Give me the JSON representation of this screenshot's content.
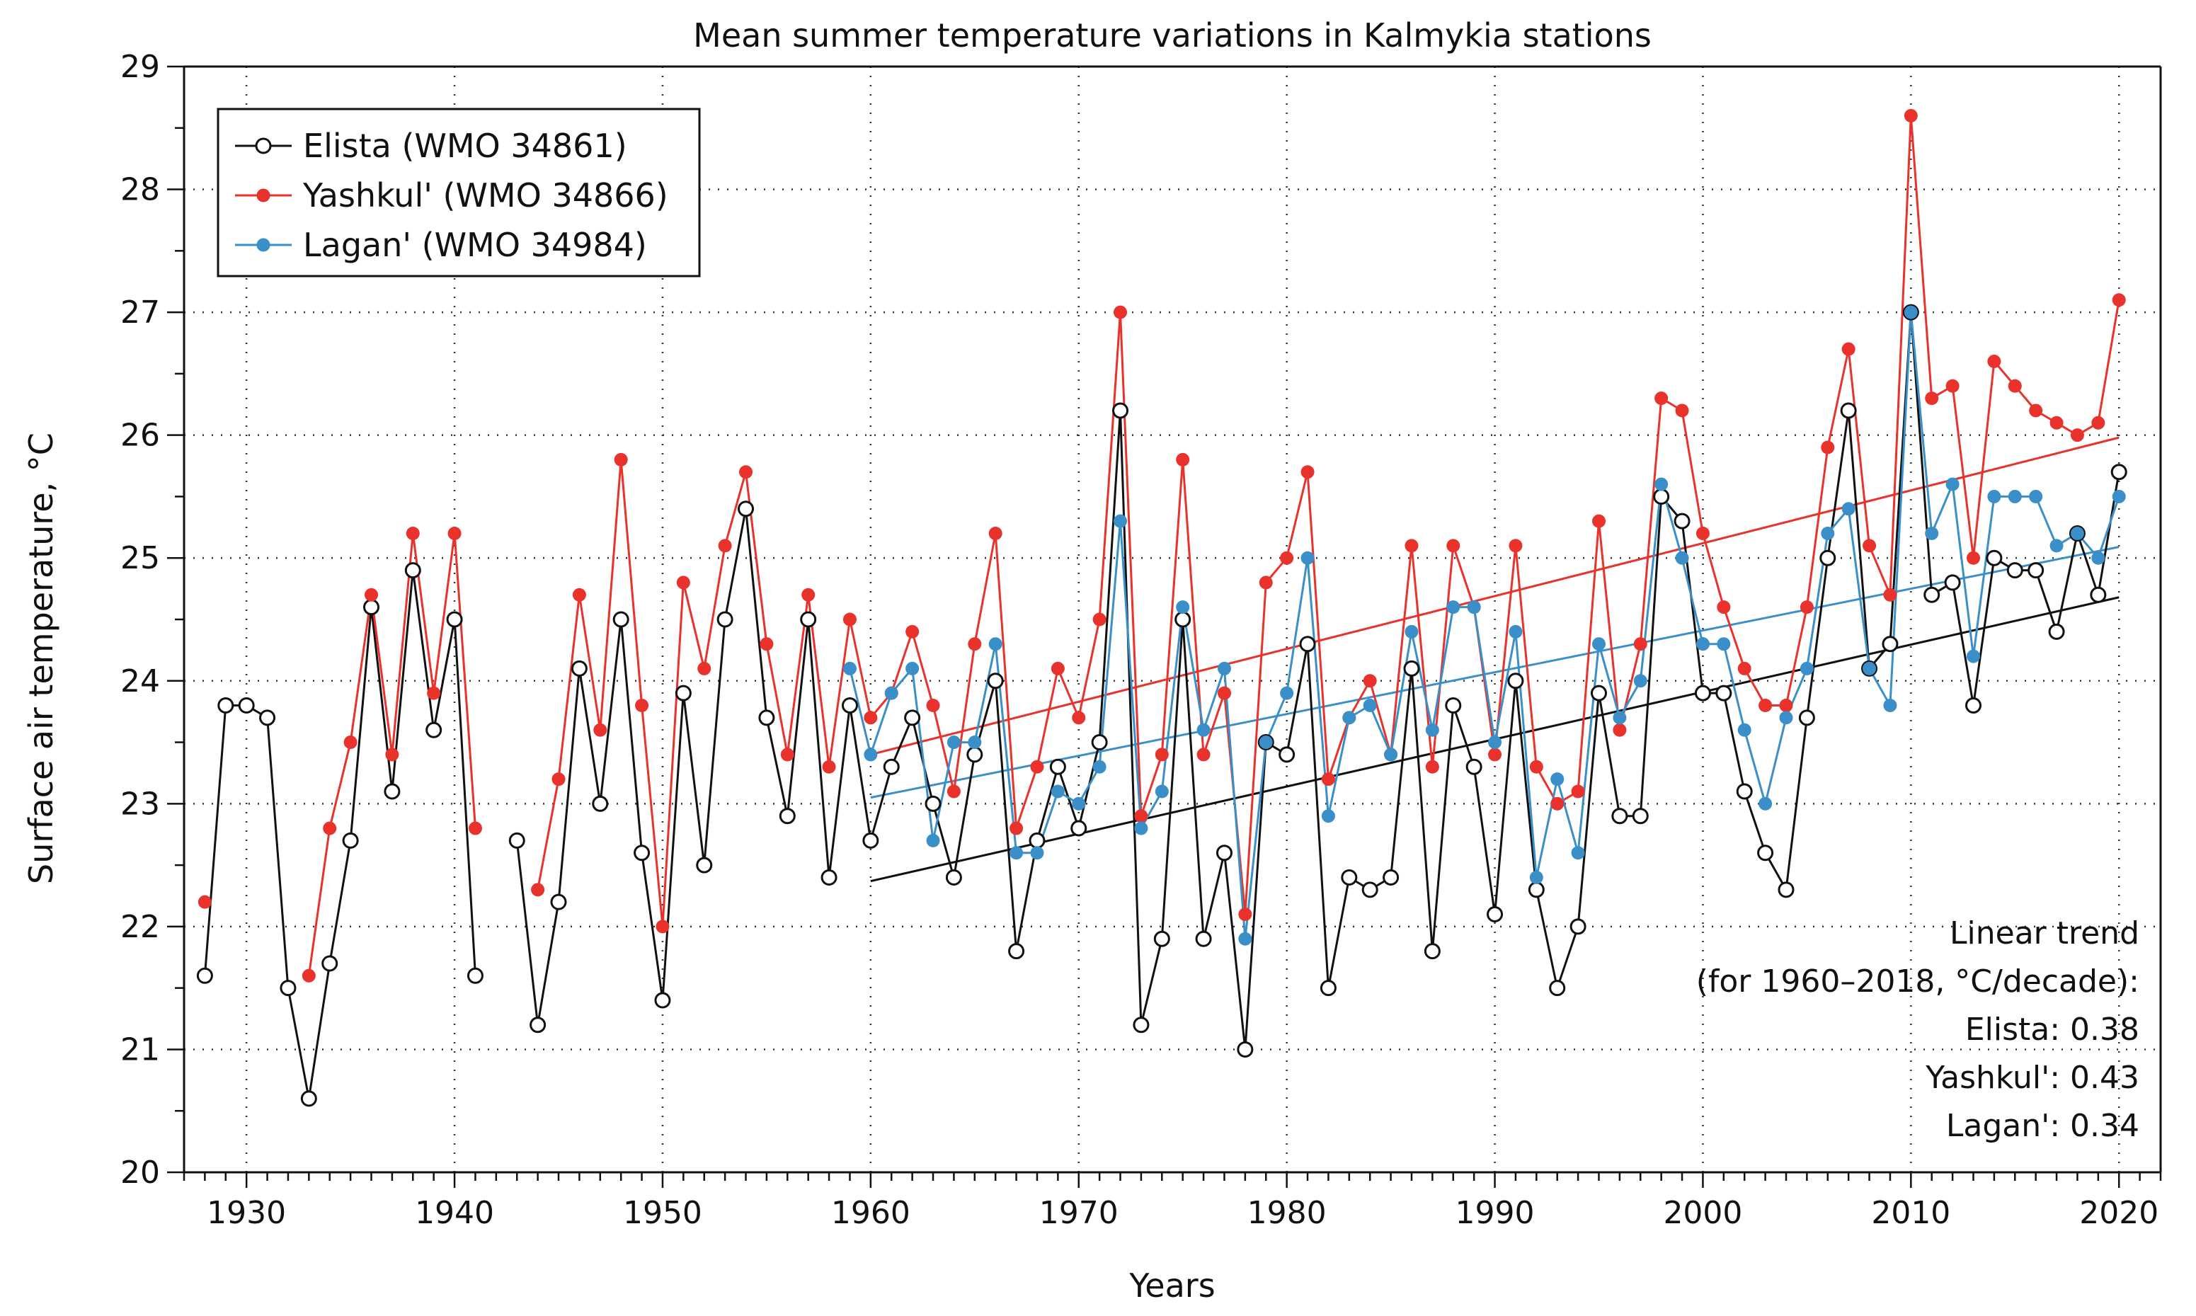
{
  "chart_data": {
    "type": "line",
    "title": "Mean summer temperature variations in Kalmykia stations",
    "xlabel": "Years",
    "ylabel": "Surface air temperature, °C",
    "xlim": [
      1927,
      2022
    ],
    "ylim": [
      20,
      29
    ],
    "xticks": [
      1930,
      1940,
      1950,
      1960,
      1970,
      1980,
      1990,
      2000,
      2010,
      2020
    ],
    "yticks": [
      20,
      21,
      22,
      23,
      24,
      25,
      26,
      27,
      28,
      29
    ],
    "grid": true,
    "legend_position": "top-left",
    "series": [
      {
        "name": "Elista (WMO 34861)",
        "color": "#111111",
        "marker": "open-circle",
        "points": [
          [
            1928,
            21.6
          ],
          [
            1929,
            23.8
          ],
          [
            1930,
            23.8
          ],
          [
            1931,
            23.7
          ],
          [
            1932,
            21.5
          ],
          [
            1933,
            20.6
          ],
          [
            1934,
            21.7
          ],
          [
            1935,
            22.7
          ],
          [
            1936,
            24.6
          ],
          [
            1937,
            23.1
          ],
          [
            1938,
            24.9
          ],
          [
            1939,
            23.6
          ],
          [
            1940,
            24.5
          ],
          [
            1941,
            21.6
          ],
          null,
          [
            1943,
            22.7
          ],
          [
            1944,
            21.2
          ],
          [
            1945,
            22.2
          ],
          [
            1946,
            24.1
          ],
          [
            1947,
            23.0
          ],
          [
            1948,
            24.5
          ],
          [
            1949,
            22.6
          ],
          [
            1950,
            21.4
          ],
          [
            1951,
            23.9
          ],
          [
            1952,
            22.5
          ],
          [
            1953,
            24.5
          ],
          [
            1954,
            25.4
          ],
          [
            1955,
            23.7
          ],
          [
            1956,
            22.9
          ],
          [
            1957,
            24.5
          ],
          [
            1958,
            22.4
          ],
          [
            1959,
            23.8
          ],
          [
            1960,
            22.7
          ],
          [
            1961,
            23.3
          ],
          [
            1962,
            23.7
          ],
          [
            1963,
            23.0
          ],
          [
            1964,
            22.4
          ],
          [
            1965,
            23.4
          ],
          [
            1966,
            24.0
          ],
          [
            1967,
            21.8
          ],
          [
            1968,
            22.7
          ],
          [
            1969,
            23.3
          ],
          [
            1970,
            22.8
          ],
          [
            1971,
            23.5
          ],
          [
            1972,
            26.2
          ],
          [
            1973,
            21.2
          ],
          [
            1974,
            21.9
          ],
          [
            1975,
            24.5
          ],
          [
            1976,
            21.9
          ],
          [
            1977,
            22.6
          ],
          [
            1978,
            21.0
          ],
          [
            1979,
            23.5
          ],
          [
            1980,
            23.4
          ],
          [
            1981,
            24.3
          ],
          [
            1982,
            21.5
          ],
          [
            1983,
            22.4
          ],
          [
            1984,
            22.3
          ],
          [
            1985,
            22.4
          ],
          [
            1986,
            24.1
          ],
          [
            1987,
            21.8
          ],
          [
            1988,
            23.8
          ],
          [
            1989,
            23.3
          ],
          [
            1990,
            22.1
          ],
          [
            1991,
            24.0
          ],
          [
            1992,
            22.3
          ],
          [
            1993,
            21.5
          ],
          [
            1994,
            22.0
          ],
          [
            1995,
            23.9
          ],
          [
            1996,
            22.9
          ],
          [
            1997,
            22.9
          ],
          [
            1998,
            25.5
          ],
          [
            1999,
            25.3
          ],
          [
            2000,
            23.9
          ],
          [
            2001,
            23.9
          ],
          [
            2002,
            23.1
          ],
          [
            2003,
            22.6
          ],
          [
            2004,
            22.3
          ],
          [
            2005,
            23.7
          ],
          [
            2006,
            25.0
          ],
          [
            2007,
            26.2
          ],
          [
            2008,
            24.1
          ],
          [
            2009,
            24.3
          ],
          [
            2010,
            27.0
          ],
          [
            2011,
            24.7
          ],
          [
            2012,
            24.8
          ],
          [
            2013,
            23.8
          ],
          [
            2014,
            25.0
          ],
          [
            2015,
            24.9
          ],
          [
            2016,
            24.9
          ],
          [
            2017,
            24.4
          ],
          [
            2018,
            25.2
          ],
          [
            2019,
            24.7
          ],
          [
            2020,
            25.7
          ]
        ],
        "trend": {
          "x": [
            1960,
            2020
          ],
          "y": [
            22.37,
            24.68
          ]
        }
      },
      {
        "name": "Yashkul' (WMO 34866)",
        "color": "#e8322b",
        "marker": "filled-circle",
        "points": [
          [
            1928,
            22.2
          ],
          null,
          [
            1933,
            21.6
          ],
          [
            1934,
            22.8
          ],
          [
            1935,
            23.5
          ],
          [
            1936,
            24.7
          ],
          [
            1937,
            23.4
          ],
          [
            1938,
            25.2
          ],
          [
            1939,
            23.9
          ],
          [
            1940,
            25.2
          ],
          [
            1941,
            22.8
          ],
          null,
          [
            1944,
            22.3
          ],
          [
            1945,
            23.2
          ],
          [
            1946,
            24.7
          ],
          [
            1947,
            23.6
          ],
          [
            1948,
            25.8
          ],
          [
            1949,
            23.8
          ],
          [
            1950,
            22.0
          ],
          [
            1951,
            24.8
          ],
          [
            1952,
            24.1
          ],
          [
            1953,
            25.1
          ],
          [
            1954,
            25.7
          ],
          [
            1955,
            24.3
          ],
          [
            1956,
            23.4
          ],
          [
            1957,
            24.7
          ],
          [
            1958,
            23.3
          ],
          [
            1959,
            24.5
          ],
          [
            1960,
            23.7
          ],
          [
            1961,
            23.9
          ],
          [
            1962,
            24.4
          ],
          [
            1963,
            23.8
          ],
          [
            1964,
            23.1
          ],
          [
            1965,
            24.3
          ],
          [
            1966,
            25.2
          ],
          [
            1967,
            22.8
          ],
          [
            1968,
            23.3
          ],
          [
            1969,
            24.1
          ],
          [
            1970,
            23.7
          ],
          [
            1971,
            24.5
          ],
          [
            1972,
            27.0
          ],
          [
            1973,
            22.9
          ],
          [
            1974,
            23.4
          ],
          [
            1975,
            25.8
          ],
          [
            1976,
            23.4
          ],
          [
            1977,
            23.9
          ],
          [
            1978,
            22.1
          ],
          [
            1979,
            24.8
          ],
          [
            1980,
            25.0
          ],
          [
            1981,
            25.7
          ],
          [
            1982,
            23.2
          ],
          [
            1983,
            23.7
          ],
          [
            1984,
            24.0
          ],
          [
            1985,
            23.4
          ],
          [
            1986,
            25.1
          ],
          [
            1987,
            23.3
          ],
          [
            1988,
            25.1
          ],
          [
            1989,
            24.6
          ],
          [
            1990,
            23.4
          ],
          [
            1991,
            25.1
          ],
          [
            1992,
            23.3
          ],
          [
            1993,
            23.0
          ],
          [
            1994,
            23.1
          ],
          [
            1995,
            25.3
          ],
          [
            1996,
            23.6
          ],
          [
            1997,
            24.3
          ],
          [
            1998,
            26.3
          ],
          [
            1999,
            26.2
          ],
          [
            2000,
            25.2
          ],
          [
            2001,
            24.6
          ],
          [
            2002,
            24.1
          ],
          [
            2003,
            23.8
          ],
          [
            2004,
            23.8
          ],
          [
            2005,
            24.6
          ],
          [
            2006,
            25.9
          ],
          [
            2007,
            26.7
          ],
          [
            2008,
            25.1
          ],
          [
            2009,
            24.7
          ],
          [
            2010,
            28.6
          ],
          [
            2011,
            26.3
          ],
          [
            2012,
            26.4
          ],
          [
            2013,
            25.0
          ],
          [
            2014,
            26.6
          ],
          [
            2015,
            26.4
          ],
          [
            2016,
            26.2
          ],
          [
            2017,
            26.1
          ],
          [
            2018,
            26.0
          ],
          [
            2019,
            26.1
          ],
          [
            2020,
            27.1
          ]
        ],
        "trend": {
          "x": [
            1960,
            2020
          ],
          "y": [
            23.4,
            25.98
          ]
        }
      },
      {
        "name": "Lagan' (WMO 34984)",
        "color": "#3a8fc8",
        "marker": "filled-circle",
        "points": [
          [
            1959,
            24.1
          ],
          [
            1960,
            23.4
          ],
          [
            1961,
            23.9
          ],
          [
            1962,
            24.1
          ],
          [
            1963,
            22.7
          ],
          [
            1964,
            23.5
          ],
          [
            1965,
            23.5
          ],
          [
            1966,
            24.3
          ],
          [
            1967,
            22.6
          ],
          [
            1968,
            22.6
          ],
          [
            1969,
            23.1
          ],
          [
            1970,
            23.0
          ],
          [
            1971,
            23.3
          ],
          [
            1972,
            25.3
          ],
          [
            1973,
            22.8
          ],
          [
            1974,
            23.1
          ],
          [
            1975,
            24.6
          ],
          [
            1976,
            23.6
          ],
          [
            1977,
            24.1
          ],
          [
            1978,
            21.9
          ],
          [
            1979,
            23.5
          ],
          [
            1980,
            23.9
          ],
          [
            1981,
            25.0
          ],
          [
            1982,
            22.9
          ],
          [
            1983,
            23.7
          ],
          [
            1984,
            23.8
          ],
          [
            1985,
            23.4
          ],
          [
            1986,
            24.4
          ],
          [
            1987,
            23.6
          ],
          [
            1988,
            24.6
          ],
          [
            1989,
            24.6
          ],
          [
            1990,
            23.5
          ],
          [
            1991,
            24.4
          ],
          [
            1992,
            22.4
          ],
          [
            1993,
            23.2
          ],
          [
            1994,
            22.6
          ],
          [
            1995,
            24.3
          ],
          [
            1996,
            23.7
          ],
          [
            1997,
            24.0
          ],
          [
            1998,
            25.6
          ],
          [
            1999,
            25.0
          ],
          [
            2000,
            24.3
          ],
          [
            2001,
            24.3
          ],
          [
            2002,
            23.6
          ],
          [
            2003,
            23.0
          ],
          [
            2004,
            23.7
          ],
          [
            2005,
            24.1
          ],
          [
            2006,
            25.2
          ],
          [
            2007,
            25.4
          ],
          [
            2008,
            24.1
          ],
          [
            2009,
            23.8
          ],
          [
            2010,
            27.0
          ],
          [
            2011,
            25.2
          ],
          [
            2012,
            25.6
          ],
          [
            2013,
            24.2
          ],
          [
            2014,
            25.5
          ],
          [
            2015,
            25.5
          ],
          [
            2016,
            25.5
          ],
          [
            2017,
            25.1
          ],
          [
            2018,
            25.2
          ],
          [
            2019,
            25.0
          ],
          [
            2020,
            25.5
          ]
        ],
        "trend": {
          "x": [
            1960,
            2020
          ],
          "y": [
            23.05,
            25.09
          ]
        }
      }
    ],
    "annotation": {
      "lines": [
        "Linear trend",
        "(for 1960–2018, °C/decade):",
        "Elista: 0.38",
        "Yashkul': 0.43",
        "Lagan': 0.34"
      ]
    }
  }
}
